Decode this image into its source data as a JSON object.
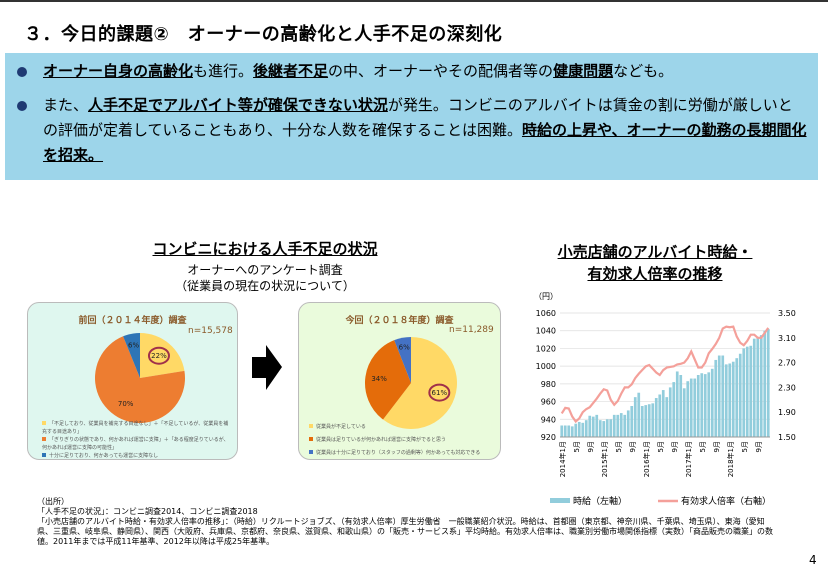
{
  "title": "３．今日的課題②　オーナーの高齢化と人手不足の深刻化",
  "bullets": [
    {
      "segments": [
        {
          "t": "オーナー自身の高齢化",
          "b": true
        },
        {
          "t": "も進行。",
          "b": false
        },
        {
          "t": "後継者不足",
          "b": true
        },
        {
          "t": "の中、オーナーやその配偶者等の",
          "b": false
        },
        {
          "t": "健康問題",
          "b": true
        },
        {
          "t": "なども。",
          "b": false
        }
      ]
    },
    {
      "segments": [
        {
          "t": "また、",
          "b": false
        },
        {
          "t": "人手不足でアルバイト等が確保できない状況",
          "b": true
        },
        {
          "t": "が発生。コンビニのアルバイトは賃金の割に労働が厳しいとの評価が定着していることもあり、十分な人数を確保することは困難。",
          "b": false
        },
        {
          "t": "時給の上昇や、オーナーの勤務の長期間化を招来。",
          "b": true
        }
      ]
    }
  ],
  "left_section": {
    "title": "コンビニにおける人手不足の状況",
    "subtitle1": "オーナーへのアンケート調査",
    "subtitle2": "（従業員の現在の状況について）"
  },
  "chart_data": [
    {
      "type": "pie",
      "title": "前回（２０１４年度）調査",
      "n": "n=15,578",
      "slices": [
        {
          "label": "22%",
          "value": 22,
          "color": "#ffd966",
          "highlight": true
        },
        {
          "label": "70%",
          "value": 70,
          "color": "#ed7d31"
        },
        {
          "label": "6%",
          "value": 6,
          "color": "#2e75b6"
        }
      ],
      "legend": [
        "「不足しており、従業員を補充する目途なし」＋「不足しているが、従業員を補充する目途あり」",
        "「ぎりぎりの状態であり、何かあれば運営に支障」＋「ある程度足りているが、何かあれば運営に支障の可能性」",
        "十分に足りており、何かあっても運営に支障なし"
      ]
    },
    {
      "type": "pie",
      "title": "今回（２０１８年度）調査",
      "n": "n=11,289",
      "slices": [
        {
          "label": "61%",
          "value": 61,
          "color": "#ffd966",
          "highlight": true
        },
        {
          "label": "34%",
          "value": 34,
          "color": "#e46c0a"
        },
        {
          "label": "6%",
          "value": 6,
          "color": "#4472c4"
        }
      ],
      "legend": [
        "従業員が不足している",
        "従業員は足りているが何かあれば運営に支障がでると思う",
        "従業員は十分に足りており（スタッフの過剰等）何かあっても対応できる"
      ]
    },
    {
      "type": "bar+line",
      "title": "小売店舗のアルバイト時給・有効求人倍率の推移",
      "title_line1": "小売店舗のアルバイト時給・",
      "title_line2": "有効求人倍率の推移",
      "yunit": "（円）",
      "ylim": [
        920,
        1060
      ],
      "yticks": [
        920,
        940,
        960,
        980,
        1000,
        1020,
        1040,
        1060
      ],
      "y2lim": [
        1.5,
        3.5
      ],
      "y2ticks": [
        "1.50",
        "1.90",
        "2.30",
        "2.70",
        "3.10",
        "3.50"
      ],
      "xlabels": [
        "2014年1月",
        "5月",
        "9月",
        "2015年1月",
        "5月",
        "9月",
        "2016年1月",
        "5月",
        "9月",
        "2017年1月",
        "5月",
        "9月",
        "2018年1月",
        "5月",
        "9月"
      ],
      "series": [
        {
          "name": "時給（左軸）",
          "type": "bar",
          "color": "#92cddc",
          "values": [
            933,
            933,
            933,
            932,
            935,
            937,
            936,
            939,
            944,
            943,
            945,
            939,
            938,
            940,
            940,
            945,
            945,
            947,
            945,
            950,
            955,
            965,
            970,
            955,
            956,
            957,
            958,
            964,
            968,
            973,
            965,
            976,
            982,
            994,
            990,
            975,
            983,
            986,
            986,
            990,
            992,
            991,
            993,
            997,
            1007,
            1012,
            1012,
            1002,
            1003,
            1005,
            1009,
            1014,
            1020,
            1022,
            1023,
            1031,
            1033,
            1035,
            1040,
            1042
          ]
        },
        {
          "name": "有効求人倍率（右軸）",
          "type": "line",
          "color": "#f4a09a",
          "values": [
            1.88,
            1.97,
            1.96,
            1.83,
            1.75,
            1.8,
            1.9,
            1.95,
            1.98,
            2.05,
            2.12,
            2.2,
            2.27,
            2.25,
            2.1,
            2.02,
            2.08,
            2.2,
            2.3,
            2.3,
            2.35,
            2.45,
            2.52,
            2.58,
            2.64,
            2.66,
            2.6,
            2.54,
            2.5,
            2.58,
            2.62,
            2.63,
            2.64,
            2.67,
            2.68,
            2.7,
            2.77,
            2.88,
            2.75,
            2.62,
            2.62,
            2.7,
            2.85,
            2.92,
            3.0,
            3.1,
            3.25,
            3.28,
            3.27,
            3.28,
            3.12,
            3.02,
            2.98,
            3.05,
            3.15,
            3.15,
            3.1,
            3.1,
            3.18,
            3.26
          ]
        }
      ]
    }
  ],
  "source": {
    "head": "（出所）",
    "line1": "「人手不足の状況」：コンビニ調査2014、コンビニ調査2018",
    "line2": "「小売店舗のアルバイト時給・有効求人倍率の推移」：（時給）リクルートジョブズ、（有効求人倍率）厚生労働省　一般職業紹介状況。時給は、首都圏（東京都、神奈川県、千葉県、埼玉県）、東海（愛知県、三重県、岐阜県、静岡県）、関西（大阪府、兵庫県、京都府、奈良県、滋賀県、和歌山県）の「販売・サービス系」平均時給。有効求人倍率は、職業別労働市場関係指標（実数）「商品販売の職業」の数値。2011年までは平成11年基準、2012年以降は平成25年基準。"
  },
  "page_number": "4"
}
